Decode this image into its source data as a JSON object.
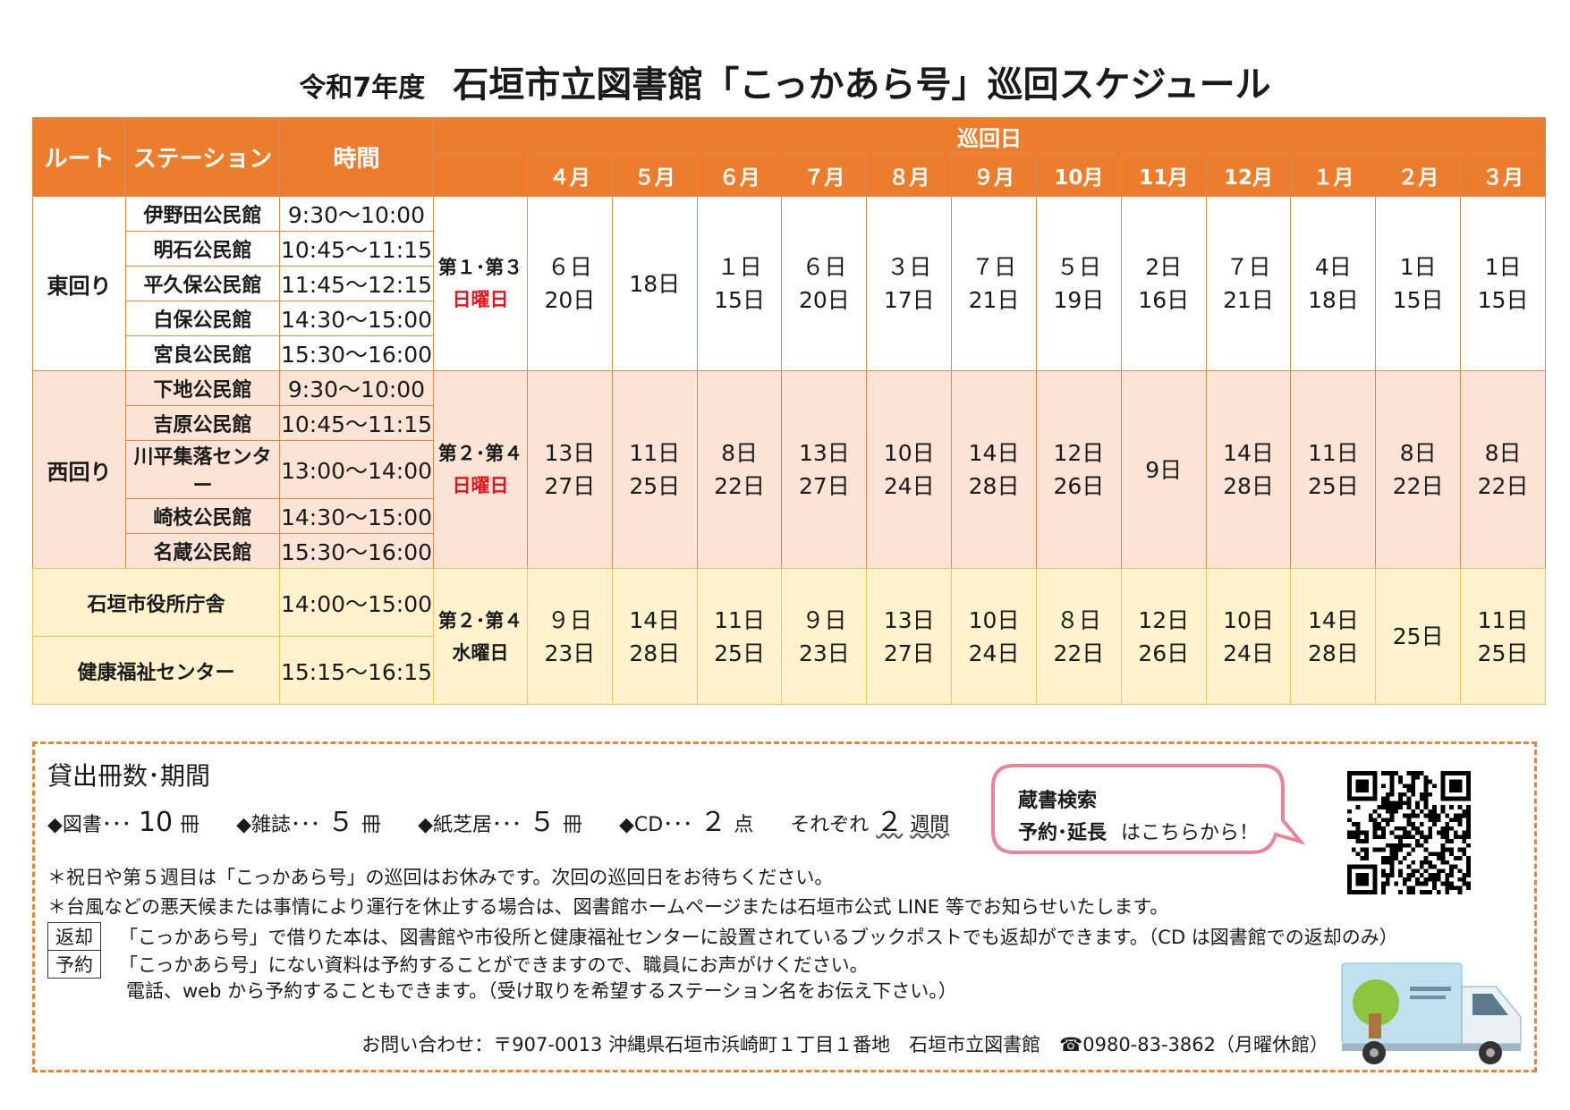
{
  "title": {
    "sub": "令和7年度",
    "main": "石垣市立図書館「こっかあら号」巡回スケジュール"
  },
  "headers": {
    "route": "ルート",
    "station": "ステーション",
    "time": "時間",
    "junkai": "巡回日",
    "months": [
      "４月",
      "５月",
      "６月",
      "７月",
      "８月",
      "９月",
      "10月",
      "11月",
      "12月",
      "１月",
      "２月",
      "３月"
    ]
  },
  "east": {
    "route": "東回り",
    "stations": [
      {
        "name": "伊野田公民館",
        "time": "9:30～10:00"
      },
      {
        "name": "明石公民館",
        "time": "10:45～11:15"
      },
      {
        "name": "平久保公民館",
        "time": "11:45～12:15"
      },
      {
        "name": "白保公民館",
        "time": "14:30～15:00"
      },
      {
        "name": "宮良公民館",
        "time": "15:30～16:00"
      }
    ],
    "week_a": "第１･第３",
    "week_b": "日曜日",
    "dates": [
      [
        "６日",
        "20日"
      ],
      [
        "18日"
      ],
      [
        "１日",
        "15日"
      ],
      [
        "６日",
        "20日"
      ],
      [
        "３日",
        "17日"
      ],
      [
        "７日",
        "21日"
      ],
      [
        "５日",
        "19日"
      ],
      [
        "2日",
        "16日"
      ],
      [
        "７日",
        "21日"
      ],
      [
        "4日",
        "18日"
      ],
      [
        "1日",
        "15日"
      ],
      [
        "1日",
        "15日"
      ]
    ]
  },
  "west": {
    "route": "西回り",
    "stations": [
      {
        "name": "下地公民館",
        "time": "9:30～10:00"
      },
      {
        "name": "吉原公民館",
        "time": "10:45～11:15"
      },
      {
        "name": "川平集落センター",
        "time": "13:00～14:00"
      },
      {
        "name": "崎枝公民館",
        "time": "14:30～15:00"
      },
      {
        "name": "名蔵公民館",
        "time": "15:30～16:00"
      }
    ],
    "week_a": "第２･第４",
    "week_b": "日曜日",
    "dates": [
      [
        "13日",
        "27日"
      ],
      [
        "11日",
        "25日"
      ],
      [
        "8日",
        "22日"
      ],
      [
        "13日",
        "27日"
      ],
      [
        "10日",
        "24日"
      ],
      [
        "14日",
        "28日"
      ],
      [
        "12日",
        "26日"
      ],
      [
        "9日"
      ],
      [
        "14日",
        "28日"
      ],
      [
        "11日",
        "25日"
      ],
      [
        "8日",
        "22日"
      ],
      [
        "8日",
        "22日"
      ]
    ]
  },
  "city": {
    "stations": [
      {
        "name": "石垣市役所庁舎",
        "time": "14:00～15:00"
      },
      {
        "name": "健康福祉センター",
        "time": "15:15～16:15"
      }
    ],
    "week_a": "第２･第４",
    "week_b": "水曜日",
    "dates": [
      [
        "９日",
        "23日"
      ],
      [
        "14日",
        "28日"
      ],
      [
        "11日",
        "25日"
      ],
      [
        "９日",
        "23日"
      ],
      [
        "13日",
        "27日"
      ],
      [
        "10日",
        "24日"
      ],
      [
        "８日",
        "22日"
      ],
      [
        "12日",
        "26日"
      ],
      [
        "10日",
        "24日"
      ],
      [
        "14日",
        "28日"
      ],
      [
        "25日"
      ],
      [
        "11日",
        "25日"
      ]
    ]
  },
  "loan": {
    "title": "貸出冊数･期間",
    "books": {
      "label": "◆図書･･･",
      "num": "10",
      "unit": "冊"
    },
    "magazines": {
      "label": "◆雑誌･･･",
      "num": "５",
      "unit": "冊"
    },
    "kamishibai": {
      "label": "◆紙芝居･･･",
      "num": "５",
      "unit": "冊"
    },
    "cd": {
      "label": "◆CD･･･",
      "num": "２",
      "unit": "点"
    },
    "period": {
      "label": "それぞれ",
      "num": "２",
      "unit": "週間"
    }
  },
  "notes": {
    "holiday": "＊祝日や第５週目は「こっかあら号」の巡回はお休みです。次回の巡回日をお待ちください。",
    "weather": "＊台風などの悪天候または事情により運行を休止する場合は、図書館ホームページまたは石垣市公式 LINE 等でお知らせいたします。",
    "return_tag": "返却",
    "return_text": "「こっかあら号」で借りた本は、図書館や市役所と健康福祉センターに設置されているブックポストでも返却ができます。（CD は図書館での返却のみ）",
    "reserve_tag": "予約",
    "reserve_text": "「こっかあら号」にない資料は予約することができますので、職員にお声がけください。",
    "reserve_text2": "電話、web から予約することもできます。（受け取りを希望するステーション名をお伝え下さい。）"
  },
  "bubble": {
    "line1": "蔵書検索",
    "line2": "予約･延長",
    "line2_rest": "はこちらから！"
  },
  "contact": "お問い合わせ：〒907-0013 沖縄県石垣市浜崎町１丁目１番地　石垣市立図書館　☎0980-83-3862（月曜休館）",
  "colors": {
    "header": "#eb7d2d",
    "west_bg": "#fbe3d6",
    "city_bg": "#fff2cc",
    "red": "#e4141c",
    "bubble": "#e78597",
    "dash": "#e8833a"
  }
}
